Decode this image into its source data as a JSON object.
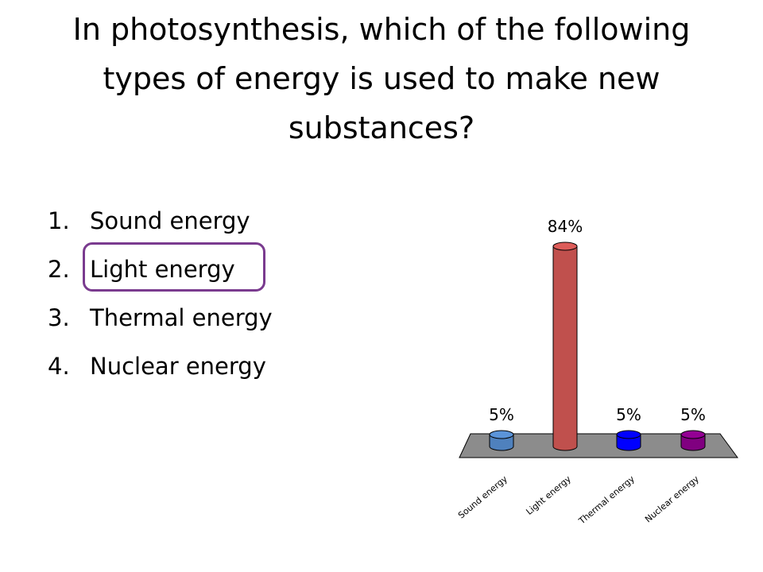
{
  "question": {
    "title": "In photosynthesis, which of the following types of energy is used to make new substances?"
  },
  "answers": [
    {
      "num": "1.",
      "label": "Sound energy"
    },
    {
      "num": "2.",
      "label": "Light energy"
    },
    {
      "num": "3.",
      "label": "Thermal energy"
    },
    {
      "num": "4.",
      "label": "Nuclear energy"
    }
  ],
  "correct_answer": "Light energy",
  "chart_data": {
    "type": "bar",
    "categories": [
      "Sound energy",
      "Light energy",
      "Thermal energy",
      "Nuclear energy"
    ],
    "values": [
      5,
      84,
      5,
      5
    ],
    "data_labels": [
      "5%",
      "84%",
      "5%",
      "5%"
    ],
    "colors": [
      "#4f81bd",
      "#c0504d",
      "#0000ff",
      "#800080"
    ],
    "ylim": [
      0,
      100
    ],
    "grid": false,
    "legend": "none"
  }
}
